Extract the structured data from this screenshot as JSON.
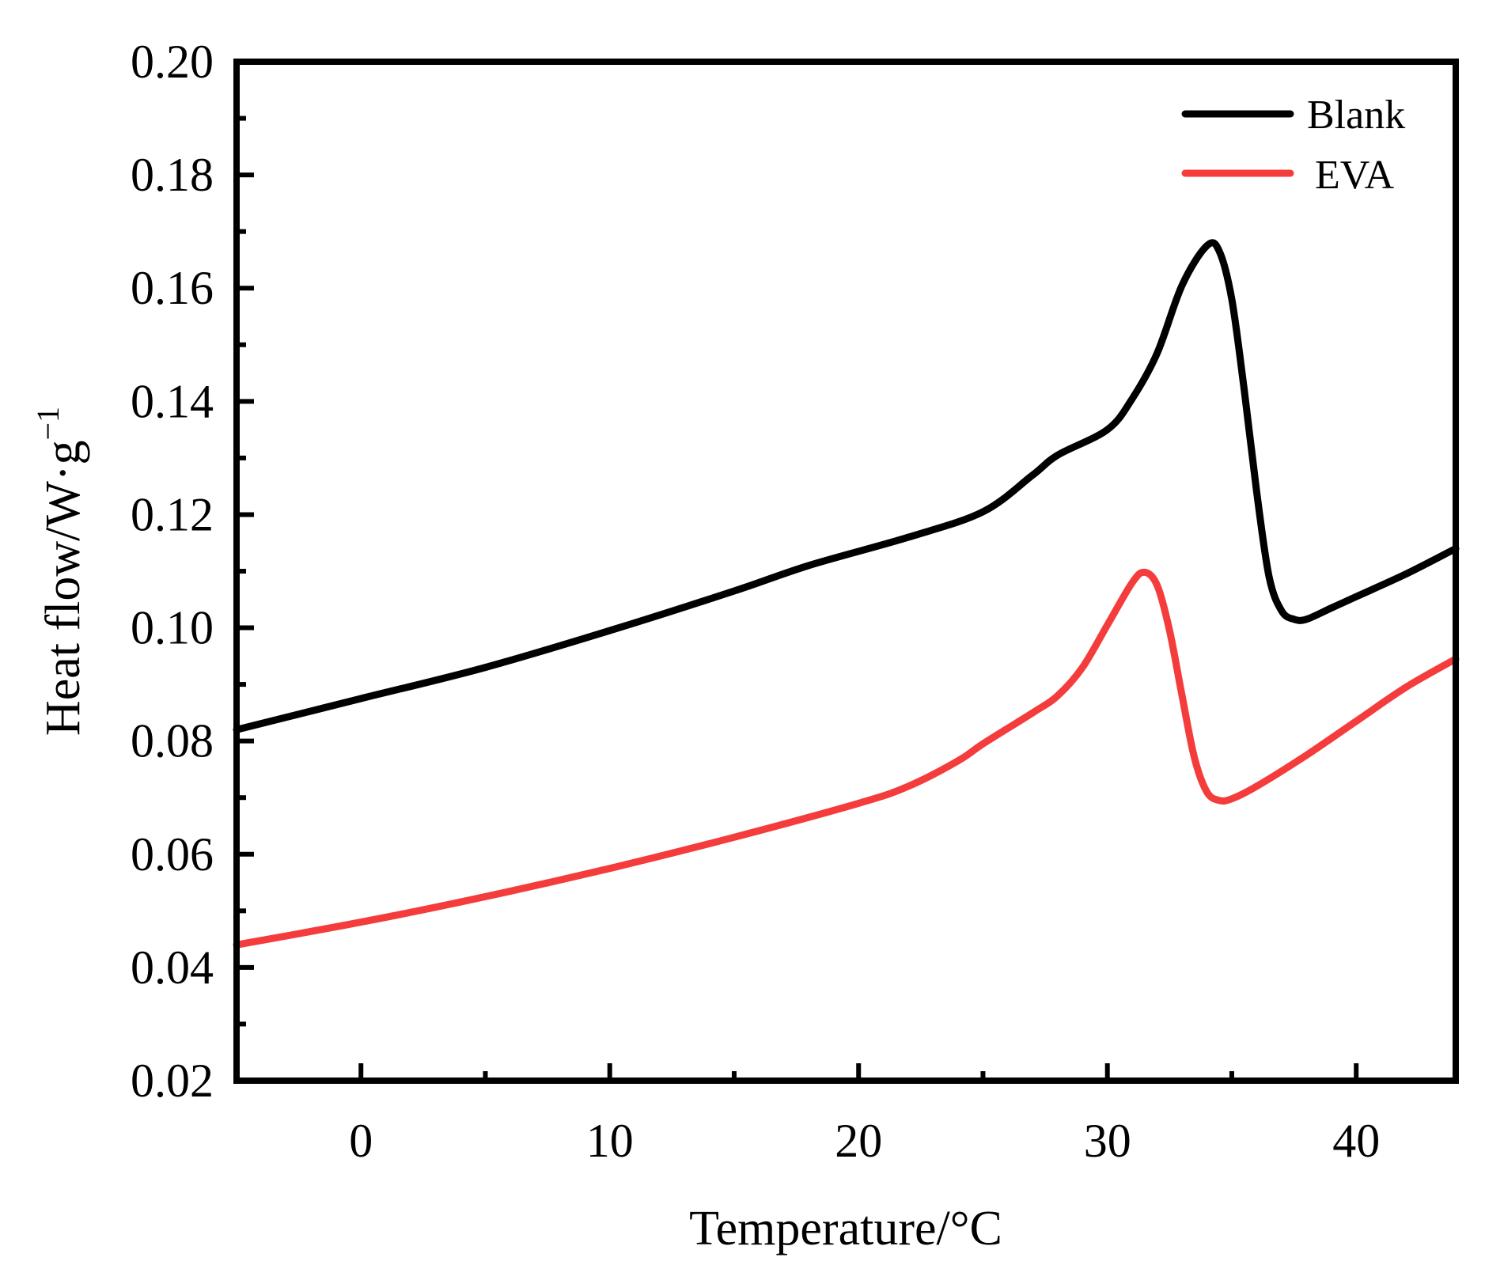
{
  "chart_data": {
    "type": "line",
    "title": "",
    "xlabel": "Temperature/°C",
    "ylabel_main": "Heat flow/W·g",
    "ylabel_sup": "−1",
    "xlim": [
      -5,
      44
    ],
    "ylim": [
      0.02,
      0.2
    ],
    "x_ticks": [
      0,
      10,
      20,
      30,
      40
    ],
    "x_tick_labels": [
      "0",
      "10",
      "20",
      "30",
      "40"
    ],
    "y_ticks": [
      0.02,
      0.04,
      0.06,
      0.08,
      0.1,
      0.12,
      0.14,
      0.16,
      0.18,
      0.2
    ],
    "y_tick_labels": [
      "0.02",
      "0.04",
      "0.06",
      "0.08",
      "0.10",
      "0.12",
      "0.14",
      "0.16",
      "0.18",
      "0.20"
    ],
    "grid": false,
    "legend_position": "top-right",
    "series": [
      {
        "name": "Blank",
        "color": "#000000",
        "x": [
          -5,
          0,
          5,
          10,
          15,
          18,
          22,
          25,
          27,
          28,
          30,
          31,
          32,
          33,
          34,
          34.5,
          35,
          35.5,
          36,
          36.5,
          37,
          37.5,
          38,
          39,
          40,
          42,
          44
        ],
        "y": [
          0.082,
          0.0875,
          0.093,
          0.0995,
          0.1065,
          0.111,
          0.116,
          0.1205,
          0.127,
          0.1305,
          0.135,
          0.1405,
          0.1485,
          0.1605,
          0.1675,
          0.1665,
          0.158,
          0.142,
          0.124,
          0.109,
          0.103,
          0.1015,
          0.1015,
          0.1035,
          0.1055,
          0.1095,
          0.114
        ]
      },
      {
        "name": "EVA",
        "color": "#f53c3c",
        "x": [
          -5,
          0,
          5,
          10,
          15,
          20,
          22,
          24,
          25,
          27,
          28,
          29,
          30,
          31,
          31.5,
          32,
          32.5,
          33,
          33.5,
          34,
          34.5,
          35,
          36,
          38,
          40,
          42,
          44
        ],
        "y": [
          0.044,
          0.048,
          0.0525,
          0.0575,
          0.063,
          0.069,
          0.072,
          0.0765,
          0.0795,
          0.085,
          0.088,
          0.093,
          0.1005,
          0.108,
          0.1098,
          0.1075,
          0.0995,
          0.088,
          0.077,
          0.071,
          0.0695,
          0.0698,
          0.072,
          0.0775,
          0.0835,
          0.0895,
          0.0945
        ]
      }
    ]
  }
}
